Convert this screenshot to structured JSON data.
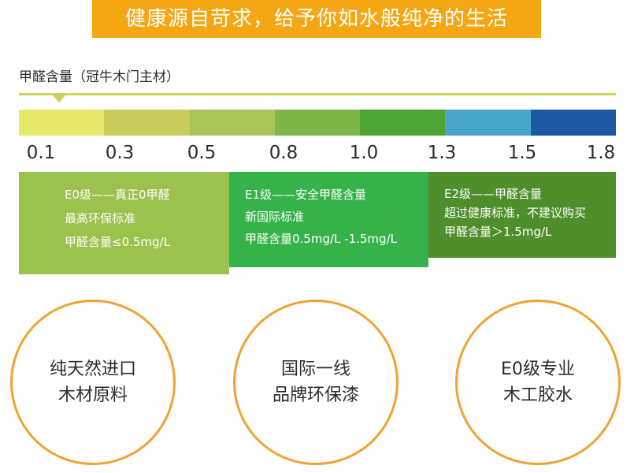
{
  "banner": {
    "text": "健康源自苛求，给予你如水般纯净的生活"
  },
  "subtitle": "甲醛含量（冠牛木门主材）",
  "colors": {
    "banner": "#f5a613",
    "rule": "#c9d35a",
    "scale": [
      "#e6e96a",
      "#c8cc5a",
      "#a8c55a",
      "#7fb64a",
      "#4ca534",
      "#4aa6c8",
      "#1c58a4"
    ],
    "e0": "#9cc24e",
    "e1": "#35b34a",
    "e2": "#4f8f2b",
    "circle_border": "#f0a334"
  },
  "scale_ticks": [
    "0.1",
    "0.3",
    "0.5",
    "0.8",
    "1.0",
    "1.3",
    "1.5",
    "1.8"
  ],
  "levels": [
    {
      "title": "E0级——真正0甲醛",
      "line2": "最高环保标准",
      "line3": "甲醛含量≤0.5mg/L"
    },
    {
      "title": "E1级——安全甲醛含量",
      "line2": "新国际标准",
      "line3": "甲醛含量0.5mg/L -1.5mg/L"
    },
    {
      "title": "E2级——甲醛含量",
      "line2": "超过健康标准，不建议购买",
      "line3": "甲醛含量＞1.5mg/L"
    }
  ],
  "features": [
    {
      "line1": "纯天然进口",
      "line2": "木材原料"
    },
    {
      "line1": "国际一线",
      "line2": "品牌环保漆"
    },
    {
      "line1": "E0级专业",
      "line2": "木工胶水"
    }
  ]
}
